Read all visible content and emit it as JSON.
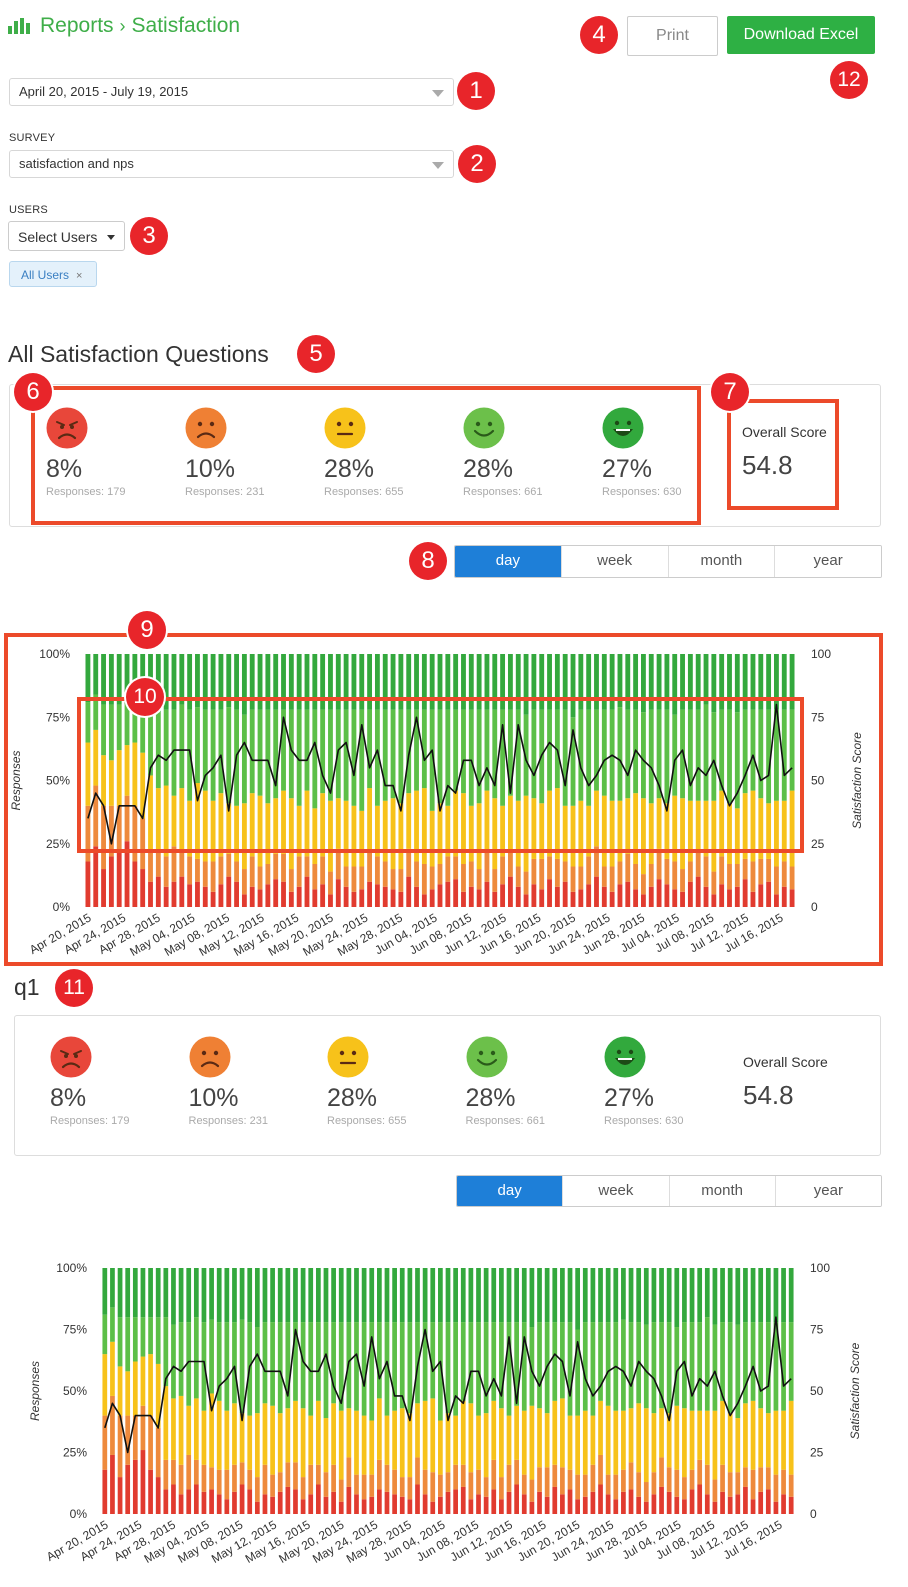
{
  "header": {
    "breadcrumb_root": "Reports",
    "breadcrumb_sep": "›",
    "breadcrumb_current": "Satisfaction",
    "print_label": "Print",
    "download_label": "Download Excel"
  },
  "filters": {
    "date_range": "April 20, 2015 - July 19, 2015",
    "survey_label": "SURVEY",
    "survey_value": "satisfaction and nps",
    "users_label": "USERS",
    "users_button": "Select Users",
    "users_tag": "All Users",
    "users_tag_remove": "×"
  },
  "annotations": [
    "1",
    "2",
    "3",
    "4",
    "5",
    "6",
    "7",
    "8",
    "9",
    "10",
    "11",
    "12"
  ],
  "sections": [
    {
      "title": "All Satisfaction Questions",
      "buckets": [
        {
          "icon": "very-unhappy-face-icon",
          "color": "#e8473a",
          "percent": "8%",
          "responses": "Responses: 179"
        },
        {
          "icon": "unhappy-face-icon",
          "color": "#ef8034",
          "percent": "10%",
          "responses": "Responses: 231"
        },
        {
          "icon": "neutral-face-icon",
          "color": "#f7c21a",
          "percent": "28%",
          "responses": "Responses: 655"
        },
        {
          "icon": "happy-face-icon",
          "color": "#6cc04a",
          "percent": "28%",
          "responses": "Responses: 661"
        },
        {
          "icon": "very-happy-face-icon",
          "color": "#32a93d",
          "percent": "27%",
          "responses": "Responses: 630"
        }
      ],
      "overall_label": "Overall Score",
      "overall_value": "54.8",
      "periods": [
        "day",
        "week",
        "month",
        "year"
      ],
      "active_period": "day"
    },
    {
      "title": "q1",
      "buckets": [
        {
          "icon": "very-unhappy-face-icon",
          "color": "#e8473a",
          "percent": "8%",
          "responses": "Responses: 179"
        },
        {
          "icon": "unhappy-face-icon",
          "color": "#ef8034",
          "percent": "10%",
          "responses": "Responses: 231"
        },
        {
          "icon": "neutral-face-icon",
          "color": "#f7c21a",
          "percent": "28%",
          "responses": "Responses: 655"
        },
        {
          "icon": "happy-face-icon",
          "color": "#6cc04a",
          "percent": "28%",
          "responses": "Responses: 661"
        },
        {
          "icon": "very-happy-face-icon",
          "color": "#32a93d",
          "percent": "27%",
          "responses": "Responses: 630"
        }
      ],
      "overall_label": "Overall Score",
      "overall_value": "54.8",
      "periods": [
        "day",
        "week",
        "month",
        "year"
      ],
      "active_period": "day"
    }
  ],
  "chart_data": [
    {
      "type": "bar",
      "stacked": true,
      "title": "",
      "xlabel": "",
      "ylabel": "Responses",
      "y2label": "Satisfaction Score",
      "ylim": [
        0,
        100
      ],
      "y2lim": [
        0,
        100
      ],
      "yticks": [
        "0%",
        "25%",
        "50%",
        "75%",
        "100%"
      ],
      "y2ticks": [
        "0",
        "25",
        "50",
        "75",
        "100"
      ],
      "xtick_labels": [
        "Apr 20, 2015",
        "Apr 24, 2015",
        "Apr 28, 2015",
        "May 04, 2015",
        "May 08, 2015",
        "May 12, 2015",
        "May 16, 2015",
        "May 20, 2015",
        "May 24, 2015",
        "May 28, 2015",
        "Jun 04, 2015",
        "Jun 08, 2015",
        "Jun 12, 2015",
        "Jun 16, 2015",
        "Jun 20, 2015",
        "Jun 24, 2015",
        "Jun 28, 2015",
        "Jul 04, 2015",
        "Jul 08, 2015",
        "Jul 12, 2015",
        "Jul 16, 2015"
      ],
      "series_colors": {
        "very_unhappy": "#e13b2f",
        "unhappy": "#ee8a3c",
        "neutral": "#f7c21a",
        "happy": "#5cbf47",
        "very_happy": "#33a83d"
      },
      "note": "91 daily bars; each bar is stacked percent of responses per satisfaction level; line = Satisfaction Score (right axis). Values estimated.",
      "series": [
        {
          "name": "very_unhappy",
          "values": [
            18,
            24,
            15,
            20,
            22,
            26,
            18,
            15,
            10,
            12,
            8,
            10,
            12,
            9,
            10,
            8,
            6,
            9,
            12,
            10,
            5,
            8,
            7,
            9,
            11,
            10,
            6,
            8,
            12,
            7,
            9,
            5,
            11,
            8,
            6,
            7,
            10,
            9,
            8,
            7,
            6,
            12,
            8,
            5,
            7,
            9,
            10,
            11,
            6,
            8,
            7,
            10,
            6,
            9,
            12,
            8,
            5,
            9,
            7,
            11,
            8,
            10,
            6,
            7,
            9,
            12,
            8,
            6,
            9,
            10,
            7,
            5,
            8,
            11,
            9,
            7,
            6,
            10,
            12,
            8,
            5,
            9,
            7,
            8,
            11,
            6,
            9,
            10,
            5,
            8,
            7
          ]
        },
        {
          "name": "unhappy",
          "values": [
            22,
            24,
            25,
            20,
            18,
            18,
            22,
            20,
            12,
            10,
            12,
            14,
            10,
            11,
            9,
            10,
            12,
            11,
            9,
            8,
            10,
            12,
            9,
            8,
            10,
            11,
            9,
            12,
            8,
            10,
            11,
            9,
            12,
            8,
            10,
            9,
            12,
            11,
            10,
            8,
            9,
            11,
            10,
            12,
            9,
            8,
            10,
            9,
            11,
            10,
            8,
            12,
            9,
            11,
            10,
            8,
            9,
            10,
            12,
            9,
            11,
            8,
            10,
            9,
            11,
            12,
            8,
            10,
            9,
            11,
            10,
            8,
            9,
            12,
            10,
            11,
            9,
            8,
            10,
            12,
            9,
            11,
            10,
            9,
            8,
            12,
            10,
            9,
            11,
            10,
            9
          ]
        },
        {
          "name": "neutral",
          "values": [
            25,
            22,
            20,
            18,
            22,
            20,
            25,
            26,
            30,
            25,
            28,
            20,
            25,
            22,
            30,
            28,
            24,
            25,
            20,
            22,
            26,
            25,
            28,
            24,
            22,
            25,
            28,
            20,
            26,
            22,
            25,
            28,
            20,
            26,
            24,
            22,
            25,
            20,
            24,
            28,
            26,
            22,
            28,
            30,
            22,
            24,
            20,
            26,
            28,
            22,
            26,
            24,
            28,
            20,
            22,
            26,
            30,
            24,
            22,
            26,
            28,
            22,
            24,
            26,
            20,
            22,
            28,
            26,
            24,
            22,
            28,
            30,
            24,
            20,
            22,
            26,
            28,
            24,
            20,
            22,
            28,
            26,
            24,
            22,
            26,
            28,
            24,
            22,
            26,
            24,
            30
          ]
        },
        {
          "name": "happy",
          "values": [
            16,
            14,
            20,
            22,
            18,
            16,
            15,
            19,
            28,
            30,
            30,
            34,
            33,
            36,
            30,
            32,
            36,
            33,
            38,
            38,
            35,
            33,
            34,
            37,
            35,
            32,
            35,
            38,
            32,
            39,
            33,
            36,
            35,
            36,
            38,
            40,
            31,
            38,
            36,
            35,
            37,
            33,
            32,
            31,
            40,
            37,
            38,
            32,
            33,
            38,
            37,
            32,
            35,
            38,
            34,
            36,
            32,
            35,
            37,
            32,
            31,
            38,
            35,
            36,
            38,
            32,
            34,
            36,
            37,
            35,
            33,
            34,
            37,
            35,
            37,
            32,
            35,
            36,
            36,
            38,
            35,
            32,
            37,
            38,
            33,
            32,
            35,
            37,
            36,
            36,
            32
          ]
        },
        {
          "name": "very_happy",
          "values": [
            19,
            16,
            20,
            20,
            20,
            20,
            20,
            20,
            20,
            23,
            22,
            22,
            20,
            22,
            21,
            22,
            22,
            22,
            21,
            22,
            24,
            22,
            22,
            22,
            22,
            22,
            22,
            22,
            22,
            22,
            22,
            22,
            22,
            22,
            22,
            22,
            22,
            22,
            22,
            22,
            22,
            22,
            22,
            22,
            22,
            22,
            22,
            22,
            22,
            22,
            22,
            22,
            22,
            22,
            22,
            22,
            24,
            22,
            22,
            22,
            22,
            22,
            25,
            22,
            22,
            22,
            22,
            22,
            21,
            22,
            22,
            23,
            22,
            22,
            22,
            24,
            22,
            22,
            22,
            20,
            23,
            22,
            22,
            23,
            22,
            22,
            22,
            22,
            22,
            22,
            22
          ]
        },
        {
          "name": "satisfaction_score",
          "axis": "right",
          "values": [
            35,
            45,
            40,
            25,
            40,
            40,
            40,
            35,
            55,
            60,
            58,
            62,
            62,
            62,
            42,
            52,
            55,
            60,
            38,
            60,
            65,
            58,
            58,
            58,
            48,
            75,
            62,
            58,
            58,
            65,
            52,
            45,
            62,
            65,
            52,
            72,
            55,
            62,
            48,
            48,
            38,
            60,
            75,
            58,
            62,
            38,
            48,
            45,
            58,
            58,
            48,
            55,
            48,
            72,
            45,
            72,
            58,
            52,
            60,
            65,
            62,
            48,
            70,
            55,
            48,
            52,
            58,
            60,
            58,
            52,
            62,
            58,
            55,
            48,
            38,
            58,
            62,
            48,
            55,
            52,
            58,
            48,
            40,
            45,
            52,
            60,
            50,
            52,
            80,
            52,
            55
          ]
        }
      ]
    },
    {
      "type": "bar",
      "stacked": true,
      "title": "",
      "xlabel": "",
      "ylabel": "Responses",
      "y2label": "Satisfaction Score",
      "ylim": [
        0,
        100
      ],
      "y2lim": [
        0,
        100
      ],
      "yticks": [
        "0%",
        "25%",
        "50%",
        "75%",
        "100%"
      ],
      "y2ticks": [
        "0",
        "25",
        "50",
        "75",
        "100"
      ],
      "xtick_labels": [
        "Apr 20, 2015",
        "Apr 24, 2015",
        "Apr 28, 2015",
        "May 04, 2015",
        "May 08, 2015",
        "May 12, 2015",
        "May 16, 2015",
        "May 20, 2015",
        "May 24, 2015",
        "May 28, 2015",
        "Jun 04, 2015",
        "Jun 08, 2015",
        "Jun 12, 2015",
        "Jun 16, 2015",
        "Jun 20, 2015",
        "Jun 24, 2015",
        "Jun 28, 2015",
        "Jul 04, 2015",
        "Jul 08, 2015",
        "Jul 12, 2015",
        "Jul 16, 2015"
      ],
      "series_colors": {
        "very_unhappy": "#e13b2f",
        "unhappy": "#ee8a3c",
        "neutral": "#f7c21a",
        "happy": "#5cbf47",
        "very_happy": "#33a83d"
      },
      "note": "Same data as the aggregate chart (q1 is the only question).",
      "series": "same_as_first"
    }
  ]
}
